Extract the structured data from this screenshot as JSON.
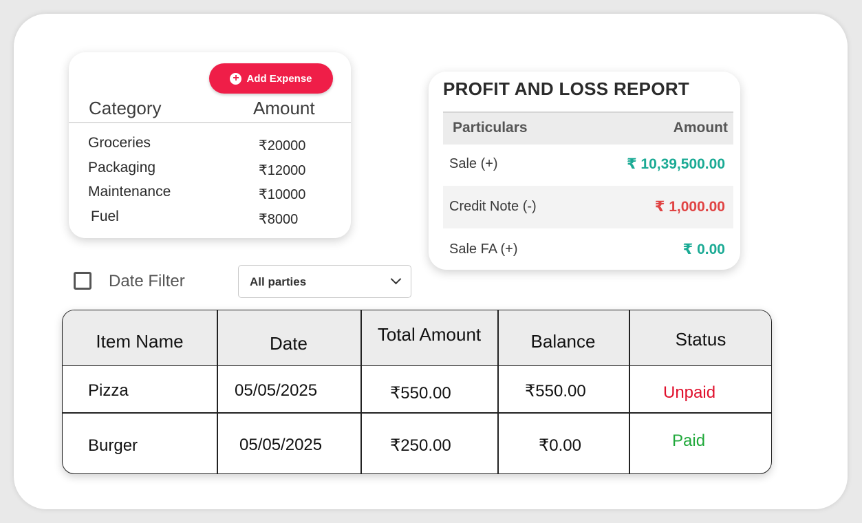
{
  "expenses": {
    "add_button_label": "Add Expense",
    "headers": {
      "category": "Category",
      "amount": "Amount"
    },
    "items": [
      {
        "category": "Groceries",
        "amount": "₹20000"
      },
      {
        "category": "Packaging",
        "amount": "₹12000"
      },
      {
        "category": "Maintenance",
        "amount": "₹10000"
      },
      {
        "category": "Fuel",
        "amount": "₹8000"
      }
    ]
  },
  "profit_loss": {
    "title": "PROFIT AND LOSS REPORT",
    "headers": {
      "particulars": "Particulars",
      "amount": "Amount"
    },
    "rows": [
      {
        "label": "Sale (+)",
        "value": "₹ 10,39,500.00",
        "color": "#1aaa94"
      },
      {
        "label": "Credit Note (-)",
        "value": "₹ 1,000.00",
        "color": "#e04343"
      },
      {
        "label": "Sale FA (+)",
        "value": "₹ 0.00",
        "color": "#1aaa94"
      }
    ]
  },
  "filters": {
    "date_filter_label": "Date Filter",
    "date_filter_checked": false,
    "party_select_value": "All parties"
  },
  "items_table": {
    "columns": [
      "Item Name",
      "Date",
      "Total Amount",
      "Balance",
      "Status"
    ],
    "rows": [
      {
        "item": "Pizza",
        "date": "05/05/2025",
        "total": "₹550.00",
        "balance": "₹550.00",
        "status": "Unpaid",
        "status_color": "#e0102c"
      },
      {
        "item": "Burger",
        "date": "05/05/2025",
        "total": "₹250.00",
        "balance": "₹0.00",
        "status": "Paid",
        "status_color": "#1fa83a"
      }
    ]
  },
  "colors": {
    "accent": "#ef1e48"
  }
}
